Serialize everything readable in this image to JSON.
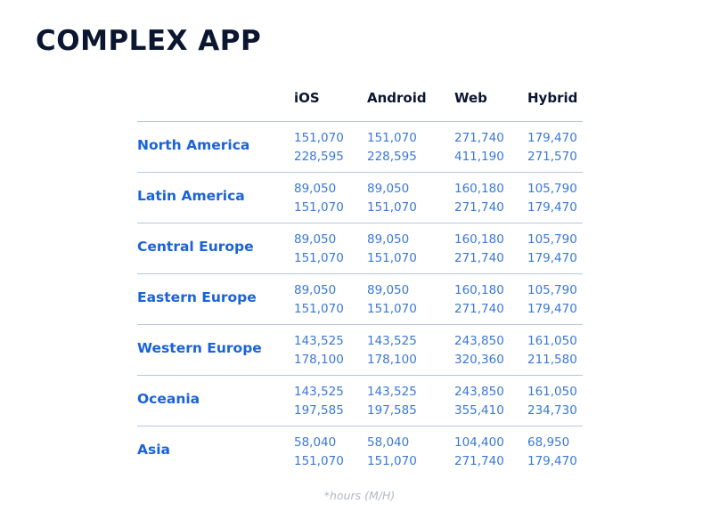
{
  "title": "COMPLEX APP",
  "columns": [
    "iOS",
    "Android",
    "Web",
    "Hybrid"
  ],
  "rows": [
    {
      "region": "North America",
      "values": [
        [
          "151,070",
          "228,595"
        ],
        [
          "151,070",
          "228,595"
        ],
        [
          "271,740",
          "411,190"
        ],
        [
          "179,470",
          "271,570"
        ]
      ]
    },
    {
      "region": "Latin America",
      "values": [
        [
          "89,050",
          "151,070"
        ],
        [
          "89,050",
          "151,070"
        ],
        [
          "160,180",
          "271,740"
        ],
        [
          "105,790",
          "179,470"
        ]
      ]
    },
    {
      "region": "Central Europe",
      "values": [
        [
          "89,050",
          "151,070"
        ],
        [
          "89,050",
          "151,070"
        ],
        [
          "160,180",
          "271,740"
        ],
        [
          "105,790",
          "179,470"
        ]
      ]
    },
    {
      "region": "Eastern Europe",
      "values": [
        [
          "89,050",
          "151,070"
        ],
        [
          "89,050",
          "151,070"
        ],
        [
          "160,180",
          "271,740"
        ],
        [
          "105,790",
          "179,470"
        ]
      ]
    },
    {
      "region": "Western Europe",
      "values": [
        [
          "143,525",
          "178,100"
        ],
        [
          "143,525",
          "178,100"
        ],
        [
          "243,850",
          "320,360"
        ],
        [
          "161,050",
          "211,580"
        ]
      ]
    },
    {
      "region": "Oceania",
      "values": [
        [
          "143,525",
          "197,585"
        ],
        [
          "143,525",
          "197,585"
        ],
        [
          "243,850",
          "355,410"
        ],
        [
          "161,050",
          "234,730"
        ]
      ]
    },
    {
      "region": "Asia",
      "values": [
        [
          "58,040",
          "151,070"
        ],
        [
          "58,040",
          "151,070"
        ],
        [
          "104,400",
          "271,740"
        ],
        [
          "68,950",
          "179,470"
        ]
      ]
    }
  ],
  "footnote": "*hours (M/H)",
  "colors": {
    "title": "#0b1630",
    "region": "#1a63d8",
    "value": "#3a78d8",
    "divider": "#b8c7dd",
    "footnote": "#b4b9c2"
  }
}
